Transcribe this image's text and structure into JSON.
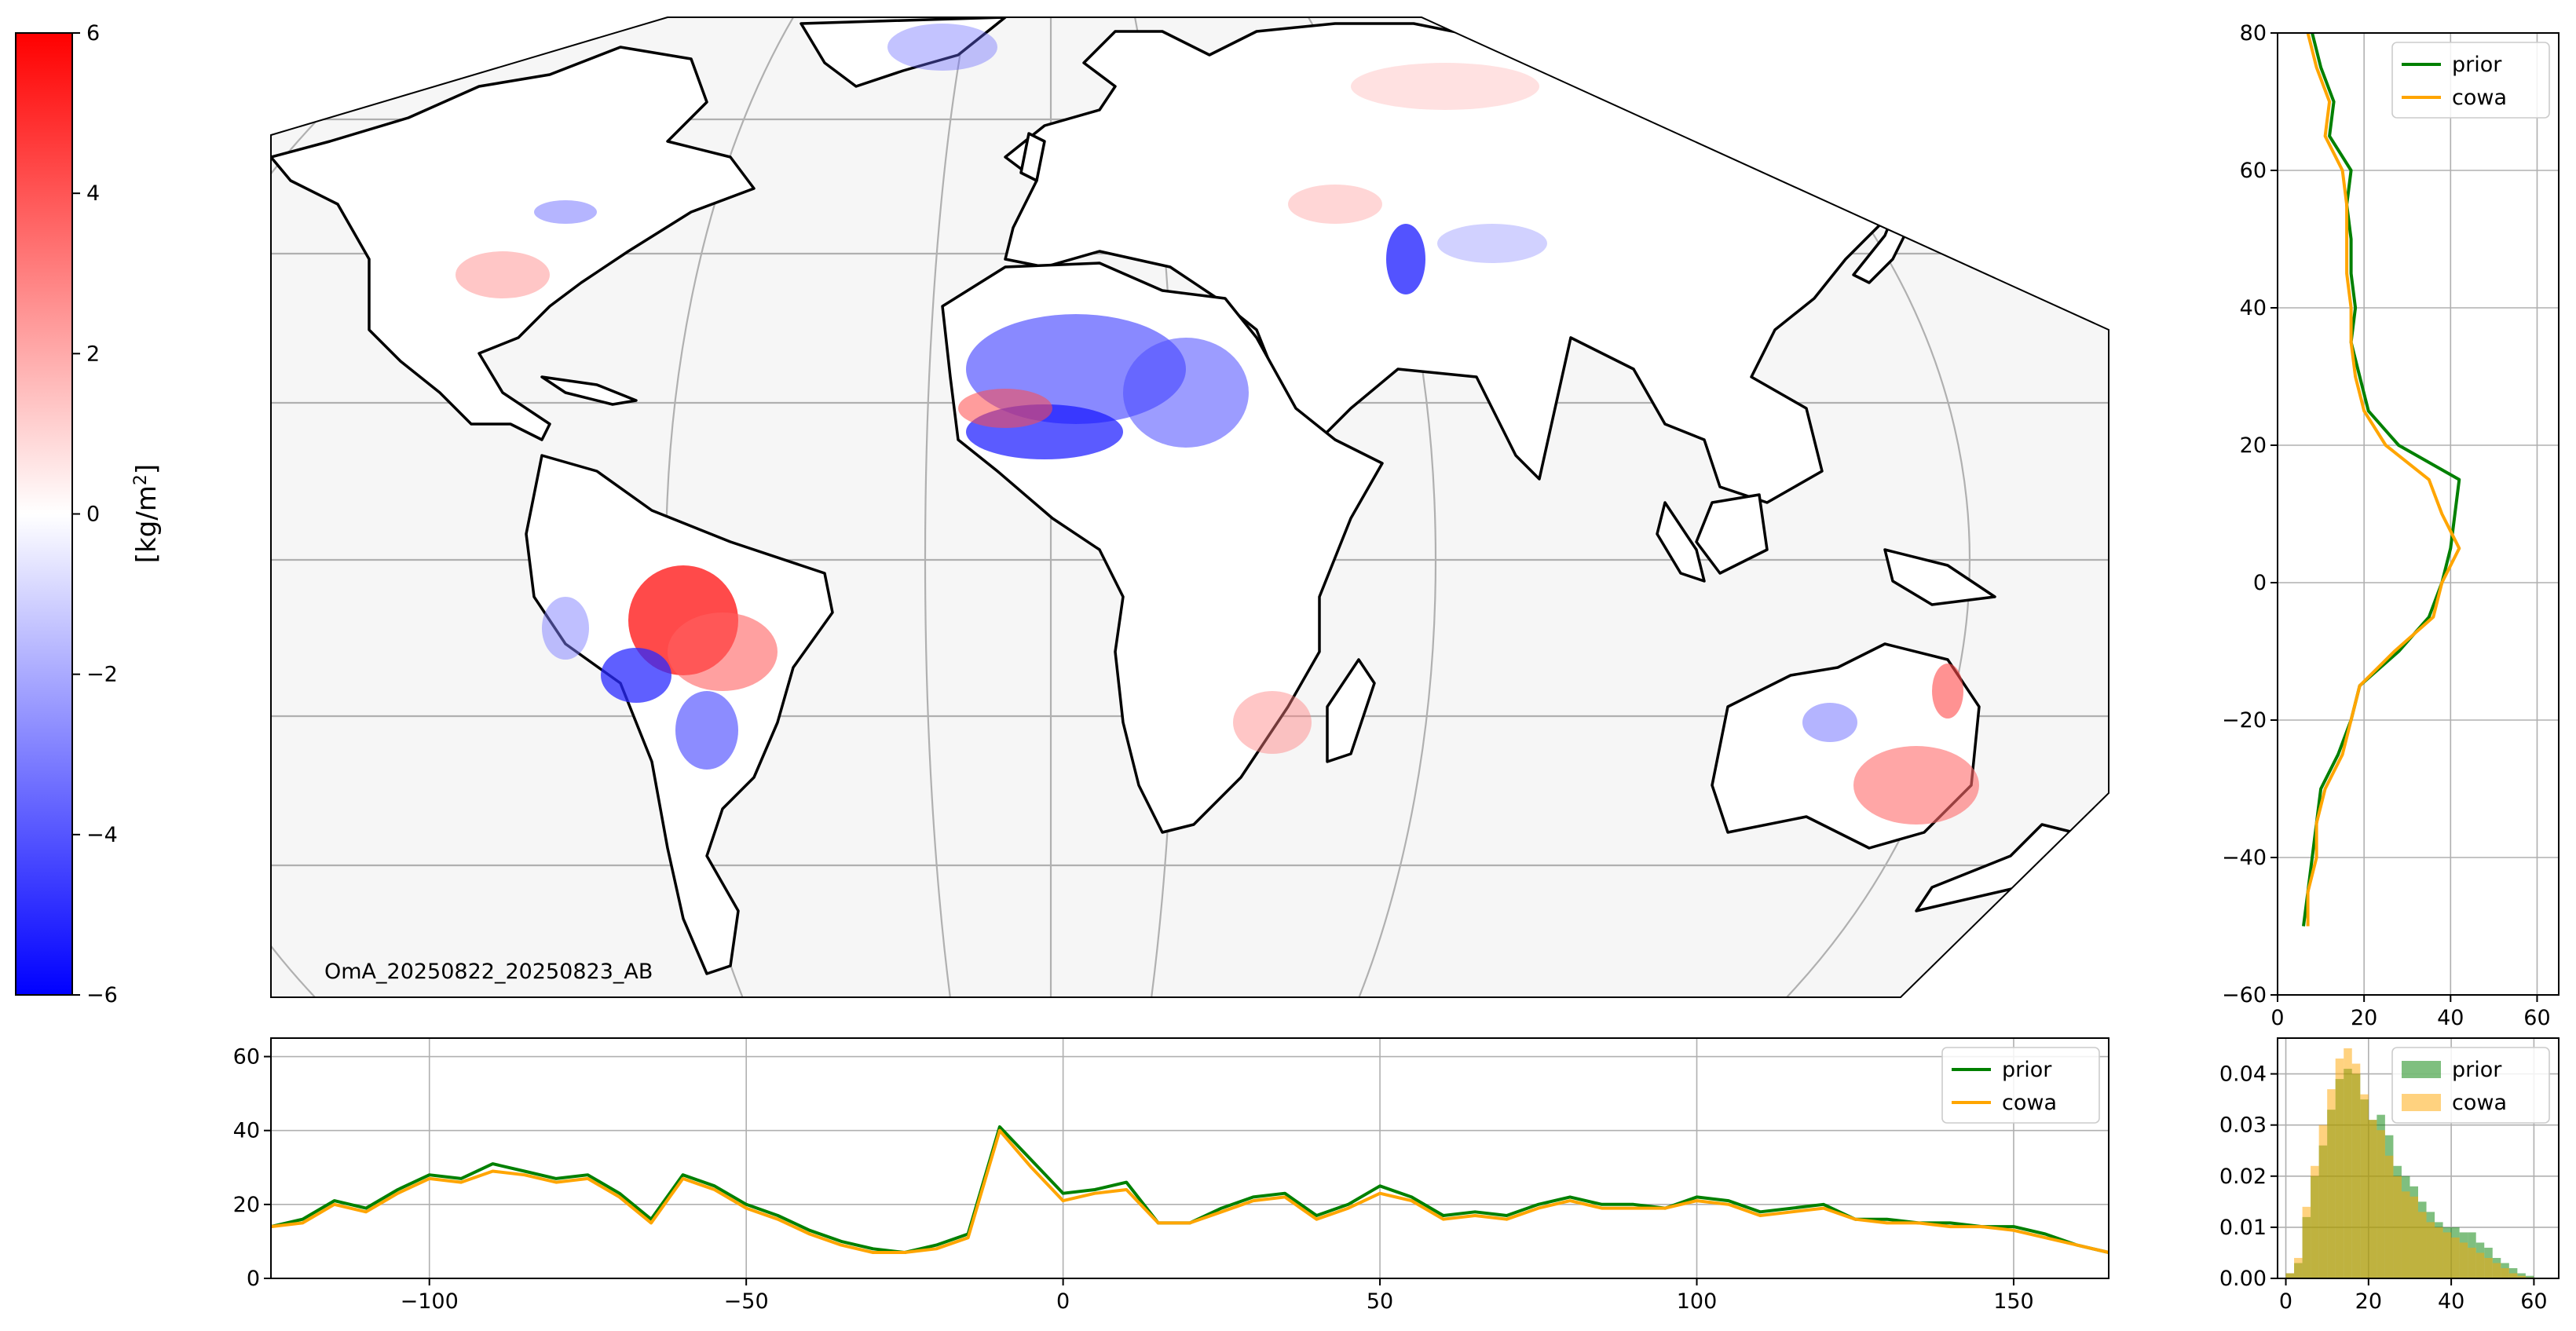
{
  "figure_label": "OmA_20250822_20250823_AB",
  "colorbar": {
    "label_prefix": "[kg/m",
    "label_sup": "2",
    "label_suffix": "]",
    "ticks": [
      "6",
      "4",
      "2",
      "0",
      "−2",
      "−4",
      "−6"
    ],
    "tick_values": [
      6,
      4,
      2,
      0,
      -2,
      -4,
      -6
    ],
    "vmin": -6,
    "vmax": 6,
    "cmap": "bwr",
    "colors": {
      "low": "#0000ff",
      "mid": "#ffffff",
      "high": "#ff0000"
    }
  },
  "map": {
    "projection": "Mollweide (cropped)",
    "land_color": "#ffffff",
    "ocean_color": "#f6f6f6",
    "coastline_color": "#000000",
    "gridline_color": "#b0b0b0"
  },
  "chart_data": [
    {
      "id": "right-profile",
      "type": "line",
      "orientation": "vertical",
      "xlim": [
        0,
        65
      ],
      "ylim": [
        -60,
        80
      ],
      "xticks": [
        0,
        20,
        40,
        60
      ],
      "xtick_labels": [
        "0",
        "20",
        "40",
        "60"
      ],
      "yticks": [
        -60,
        -40,
        -20,
        0,
        20,
        40,
        60,
        80
      ],
      "ytick_labels": [
        "−60",
        "−40",
        "−20",
        "0",
        "20",
        "40",
        "60",
        "80"
      ],
      "grid": true,
      "legend_position": "top-right",
      "y": [
        80,
        75,
        70,
        65,
        60,
        55,
        50,
        45,
        40,
        35,
        30,
        25,
        20,
        15,
        10,
        5,
        0,
        -5,
        -10,
        -15,
        -20,
        -25,
        -30,
        -35,
        -40,
        -45,
        -50
      ],
      "series": [
        {
          "name": "prior",
          "color": "#008000",
          "values": [
            8,
            10,
            13,
            12,
            17,
            16,
            17,
            17,
            18,
            17,
            19,
            21,
            28,
            42,
            41,
            40,
            38,
            35,
            28,
            19,
            17,
            14,
            10,
            9,
            8,
            7,
            6
          ]
        },
        {
          "name": "cowa",
          "color": "#ffa500",
          "values": [
            7,
            9,
            12,
            11,
            15,
            16,
            16,
            16,
            17,
            17,
            18,
            20,
            25,
            35,
            38,
            42,
            38,
            36,
            27,
            19,
            17,
            15,
            11,
            9,
            9,
            7,
            7
          ]
        }
      ]
    },
    {
      "id": "bottom-profile",
      "type": "line",
      "xlim": [
        -125,
        165
      ],
      "ylim": [
        0,
        65
      ],
      "xticks": [
        -100,
        -50,
        0,
        50,
        100,
        150
      ],
      "xtick_labels": [
        "−100",
        "−50",
        "0",
        "50",
        "100",
        "150"
      ],
      "yticks": [
        0,
        20,
        40,
        60
      ],
      "ytick_labels": [
        "0",
        "20",
        "40",
        "60"
      ],
      "grid": true,
      "legend_position": "top-right",
      "x": [
        -125,
        -120,
        -115,
        -110,
        -105,
        -100,
        -95,
        -90,
        -85,
        -80,
        -75,
        -70,
        -65,
        -60,
        -55,
        -50,
        -45,
        -40,
        -35,
        -30,
        -25,
        -20,
        -15,
        -10,
        -5,
        0,
        5,
        10,
        15,
        20,
        25,
        30,
        35,
        40,
        45,
        50,
        55,
        60,
        65,
        70,
        75,
        80,
        85,
        90,
        95,
        100,
        105,
        110,
        115,
        120,
        125,
        130,
        135,
        140,
        145,
        150,
        155,
        160,
        165
      ],
      "series": [
        {
          "name": "prior",
          "color": "#008000",
          "values": [
            14,
            16,
            21,
            19,
            24,
            28,
            27,
            31,
            29,
            27,
            28,
            23,
            16,
            28,
            25,
            20,
            17,
            13,
            10,
            8,
            7,
            9,
            12,
            41,
            32,
            23,
            24,
            26,
            15,
            15,
            19,
            22,
            23,
            17,
            20,
            25,
            22,
            17,
            18,
            17,
            20,
            22,
            20,
            20,
            19,
            22,
            21,
            18,
            19,
            20,
            16,
            16,
            15,
            15,
            14,
            14,
            12,
            9,
            7
          ]
        },
        {
          "name": "cowa",
          "color": "#ffa500",
          "values": [
            14,
            15,
            20,
            18,
            23,
            27,
            26,
            29,
            28,
            26,
            27,
            22,
            15,
            27,
            24,
            19,
            16,
            12,
            9,
            7,
            7,
            8,
            11,
            40,
            30,
            21,
            23,
            24,
            15,
            15,
            18,
            21,
            22,
            16,
            19,
            23,
            21,
            16,
            17,
            16,
            19,
            21,
            19,
            19,
            19,
            21,
            20,
            17,
            18,
            19,
            16,
            15,
            15,
            14,
            14,
            13,
            11,
            9,
            7
          ]
        }
      ]
    },
    {
      "id": "histogram",
      "type": "bar",
      "xlim": [
        -2,
        66
      ],
      "ylim": [
        0,
        0.047
      ],
      "xticks": [
        0,
        20,
        40,
        60
      ],
      "xtick_labels": [
        "0",
        "20",
        "40",
        "60"
      ],
      "yticks": [
        0,
        0.01,
        0.02,
        0.03,
        0.04
      ],
      "ytick_labels": [
        "0.00",
        "0.01",
        "0.02",
        "0.03",
        "0.04"
      ],
      "grid": true,
      "legend_position": "top-right",
      "bin_width": 2,
      "bin_starts": [
        0,
        2,
        4,
        6,
        8,
        10,
        12,
        14,
        16,
        18,
        20,
        22,
        24,
        26,
        28,
        30,
        32,
        34,
        36,
        38,
        40,
        42,
        44,
        46,
        48,
        50,
        52,
        54,
        56,
        58
      ],
      "series": [
        {
          "name": "prior",
          "color": "#008000",
          "alpha": 0.5,
          "values": [
            0.001,
            0.003,
            0.012,
            0.02,
            0.026,
            0.033,
            0.039,
            0.041,
            0.04,
            0.035,
            0.031,
            0.032,
            0.028,
            0.022,
            0.02,
            0.018,
            0.015,
            0.013,
            0.011,
            0.01,
            0.01,
            0.009,
            0.009,
            0.007,
            0.006,
            0.004,
            0.003,
            0.002,
            0.001,
            0.0005
          ]
        },
        {
          "name": "cowa",
          "color": "#ffa500",
          "alpha": 0.5,
          "values": [
            0.001,
            0.004,
            0.014,
            0.022,
            0.03,
            0.037,
            0.043,
            0.045,
            0.042,
            0.036,
            0.031,
            0.029,
            0.024,
            0.02,
            0.017,
            0.016,
            0.013,
            0.011,
            0.01,
            0.009,
            0.008,
            0.007,
            0.006,
            0.005,
            0.004,
            0.003,
            0.002,
            0.001,
            0.0005,
            0.0002
          ]
        }
      ]
    }
  ]
}
